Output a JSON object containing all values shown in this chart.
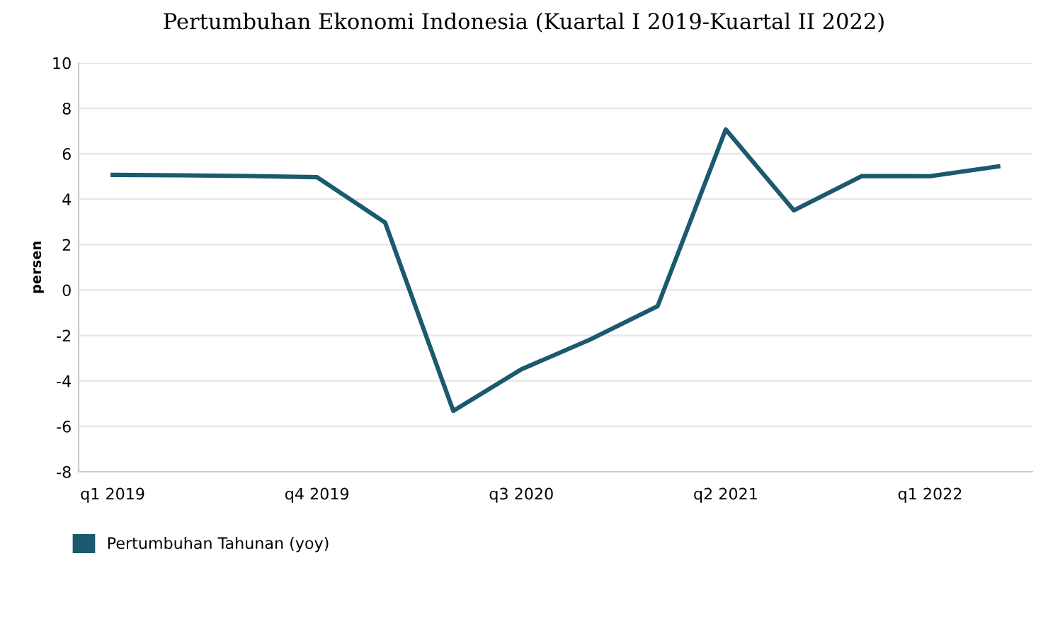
{
  "chart_data": {
    "type": "line",
    "title": "Pertumbuhan Ekonomi Indonesia (Kuartal I 2019-Kuartal II 2022)",
    "ylabel": "persen",
    "categories": [
      "q1 2019",
      null,
      null,
      "q4 2019",
      null,
      null,
      "q3 2020",
      null,
      null,
      "q2 2021",
      null,
      null,
      "q1 2022",
      null
    ],
    "series": [
      {
        "name": "Pertumbuhan Tahunan (yoy)",
        "color": "#1b5a6e",
        "values": [
          5.07,
          5.05,
          5.02,
          4.97,
          2.97,
          -5.32,
          -3.49,
          -2.19,
          -0.71,
          7.07,
          3.51,
          5.02,
          5.01,
          5.44
        ]
      }
    ],
    "ylim": [
      -8,
      10
    ],
    "yticks": [
      -8,
      -6,
      -4,
      -2,
      0,
      2,
      4,
      6,
      8,
      10
    ],
    "grid": "y",
    "legend": "bottom left",
    "marker": "none",
    "line_style": "solid"
  }
}
